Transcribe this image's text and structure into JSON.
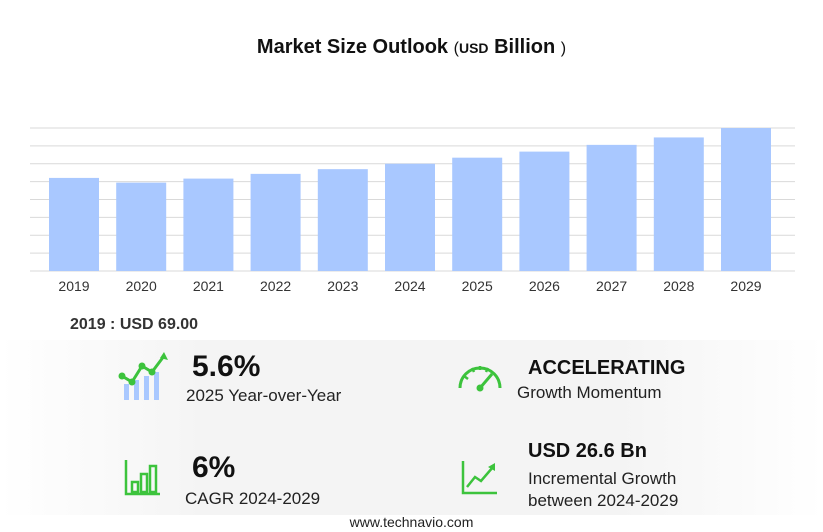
{
  "title": {
    "main": "Market Size Outlook",
    "paren_open": "(",
    "unit_small": "USD",
    "unit_text": "Billion",
    "paren_close": ")"
  },
  "base_value": "2019 : USD  69.00",
  "chart_data": {
    "type": "bar",
    "title": "Market Size Outlook ( USD Billion )",
    "categories": [
      "2019",
      "2020",
      "2021",
      "2022",
      "2023",
      "2024",
      "2025",
      "2026",
      "2027",
      "2028",
      "2029"
    ],
    "values": [
      69.0,
      65.5,
      68.5,
      72.0,
      75.5,
      79.5,
      84.0,
      88.5,
      93.5,
      99.0,
      106.0
    ],
    "ylim": [
      0,
      106
    ],
    "xlabel": "",
    "ylabel": "",
    "grid": true,
    "bar_color": "#a9c8ff",
    "grid_color": "#d9d9d9"
  },
  "stats": {
    "yoy": {
      "value": "5.6%",
      "label": "2025 Year-over-Year"
    },
    "momentum": {
      "value": "ACCELERATING",
      "label": "Growth Momentum"
    },
    "cagr": {
      "value": "6%",
      "label": "CAGR 2024-2029"
    },
    "incremental": {
      "value": "USD  26.6 Bn",
      "label_line1": "Incremental Growth",
      "label_line2": "between 2024-2029"
    }
  },
  "icons": {
    "yoy": "growth-chart-icon",
    "momentum": "speedometer-icon",
    "cagr": "bar-chart-icon",
    "incremental": "trend-up-icon"
  },
  "accent_color": "#3cc33c",
  "footer": "www.technavio.com"
}
